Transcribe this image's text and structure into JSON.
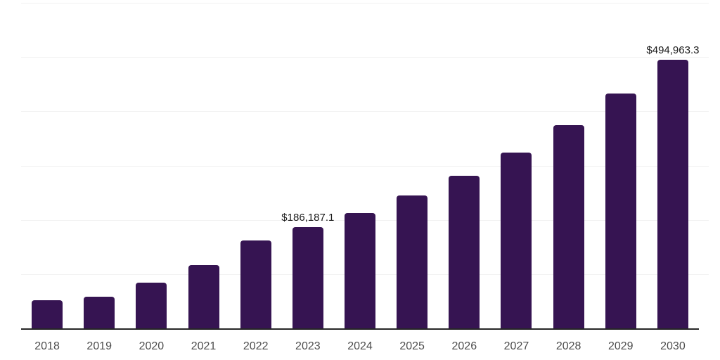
{
  "chart_data": {
    "type": "bar",
    "title": "",
    "xlabel": "",
    "ylabel": "",
    "categories": [
      "2018",
      "2019",
      "2020",
      "2021",
      "2022",
      "2023",
      "2024",
      "2025",
      "2026",
      "2027",
      "2028",
      "2029",
      "2030"
    ],
    "values": [
      52000,
      58600,
      84000,
      117200,
      161400,
      186187.1,
      212200,
      244800,
      281200,
      324200,
      375000,
      432900,
      494963.3
    ],
    "data_labels": [
      "",
      "",
      "",
      "",
      "",
      "$186,187.1",
      "",
      "",
      "",
      "",
      "",
      "",
      "$494,963.3"
    ],
    "ylim": [
      0,
      600000
    ],
    "gridline_step": 100000,
    "grid": true,
    "legend": "none",
    "bar_color": "#361452",
    "axis_line_color": "#262626",
    "gridline_color": "#f2f2f2",
    "tick_label_color": "#4d4d4d",
    "data_label_color": "#1a1a1a",
    "background_color": "#ffffff"
  }
}
